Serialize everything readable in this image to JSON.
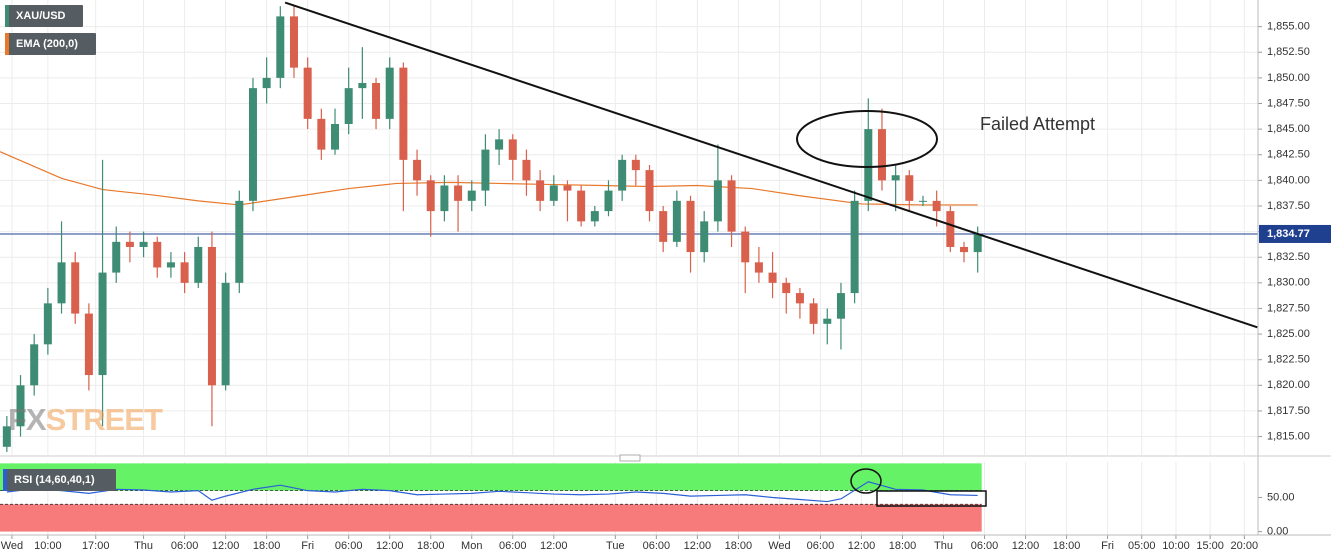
{
  "chart_data": [
    {
      "type": "candlestick",
      "title": "XAU/USD",
      "x": [
        1,
        3,
        5,
        7,
        9,
        11,
        13,
        15,
        17,
        19,
        21,
        23,
        25,
        27,
        29,
        31,
        33,
        35,
        37,
        39,
        41,
        43,
        45,
        47,
        49,
        51,
        53,
        55,
        57,
        59,
        61,
        63,
        65,
        67,
        69,
        71,
        73,
        75,
        77,
        79,
        81,
        83,
        85,
        87,
        89,
        91,
        93,
        95,
        97,
        99,
        101,
        103,
        105,
        107,
        109,
        111,
        113,
        115,
        117,
        119,
        121,
        123,
        125,
        127,
        129,
        131,
        133,
        135,
        137,
        139,
        141,
        143
      ],
      "open": [
        1814,
        1816,
        1820,
        1824,
        1828,
        1832,
        1827,
        1821,
        1831,
        1834,
        1833.5,
        1834,
        1831.5,
        1832,
        1830,
        1833.5,
        1820,
        1830,
        1838,
        1849,
        1850,
        1856,
        1851,
        1846,
        1843,
        1845.5,
        1849,
        1849.5,
        1846,
        1851,
        1842,
        1840,
        1837,
        1839.5,
        1838,
        1839,
        1843,
        1844,
        1842,
        1840,
        1838,
        1839.5,
        1839,
        1836,
        1837,
        1839,
        1842,
        1841,
        1837,
        1834,
        1838,
        1833,
        1836,
        1840,
        1835,
        1832,
        1831,
        1830,
        1829,
        1828,
        1826,
        1826.5,
        1829,
        1838,
        1845,
        1840,
        1840.5,
        1838,
        1838,
        1837,
        1833.5,
        1833
      ],
      "high": [
        1817,
        1821,
        1825,
        1829.5,
        1836,
        1833,
        1828,
        1842,
        1835.5,
        1835,
        1835,
        1834.5,
        1833,
        1833,
        1834.5,
        1835,
        1831,
        1839,
        1850,
        1852,
        1857,
        1857,
        1852,
        1847,
        1847,
        1851,
        1853,
        1850,
        1852,
        1851.5,
        1843,
        1840.5,
        1840.5,
        1840.5,
        1840,
        1844.5,
        1845,
        1844.5,
        1843,
        1841,
        1840.5,
        1840,
        1839.5,
        1837.5,
        1840,
        1842.5,
        1842.5,
        1841.5,
        1837.5,
        1839,
        1838.5,
        1837,
        1843.5,
        1840.5,
        1835.5,
        1833.5,
        1833,
        1830.5,
        1829.5,
        1828.5,
        1827.5,
        1830,
        1839,
        1848,
        1847,
        1841.5,
        1841,
        1838.5,
        1839,
        1837.5,
        1834,
        1835.5
      ],
      "low": [
        1813.5,
        1815,
        1819,
        1823,
        1827,
        1826,
        1819.5,
        1816,
        1830,
        1832,
        1832.5,
        1830.5,
        1830.5,
        1829,
        1829.5,
        1816,
        1819.5,
        1829,
        1837,
        1847.5,
        1849,
        1850,
        1845,
        1842,
        1842.5,
        1844.5,
        1846,
        1845,
        1845,
        1837,
        1838.5,
        1834.5,
        1836,
        1835,
        1837,
        1837.5,
        1841.5,
        1840,
        1838.5,
        1837,
        1837.5,
        1836,
        1835.5,
        1835.5,
        1836.5,
        1838,
        1839.5,
        1836,
        1833,
        1833.5,
        1831,
        1832,
        1835,
        1833.5,
        1829,
        1830,
        1828.5,
        1827,
        1826.5,
        1825,
        1824,
        1823.5,
        1828,
        1837,
        1839,
        1837,
        1837,
        1837.5,
        1835.5,
        1833,
        1832,
        1831
      ],
      "close": [
        1816,
        1820,
        1824,
        1828,
        1832,
        1827,
        1821,
        1831,
        1834,
        1833.5,
        1834,
        1831.5,
        1832,
        1830,
        1833.5,
        1820,
        1830,
        1838,
        1849,
        1850,
        1856,
        1851,
        1846,
        1843,
        1845.5,
        1849,
        1849.5,
        1846,
        1851,
        1842,
        1840,
        1837,
        1839.5,
        1838,
        1839,
        1843,
        1844,
        1842,
        1840,
        1838,
        1839.5,
        1839,
        1836,
        1837,
        1839,
        1842,
        1841,
        1837,
        1834,
        1838,
        1833,
        1836,
        1840,
        1835,
        1832,
        1831,
        1830,
        1829,
        1828,
        1826,
        1826.5,
        1829,
        1838,
        1845,
        1840,
        1840.5,
        1838,
        1838,
        1837,
        1833.5,
        1833,
        1834.77
      ],
      "colors": {
        "up": "#3e8c74",
        "down": "#d9604c"
      },
      "xlim": [
        0,
        184
      ],
      "xticks": [
        {
          "value": 1.75,
          "label": "Wed"
        },
        {
          "value": 7,
          "label": "10:00"
        },
        {
          "value": 14,
          "label": "17:00"
        },
        {
          "value": 21,
          "label": "Thu"
        },
        {
          "value": 27,
          "label": "06:00"
        },
        {
          "value": 33,
          "label": "12:00"
        },
        {
          "value": 39,
          "label": "18:00"
        },
        {
          "value": 45,
          "label": "Fri"
        },
        {
          "value": 51,
          "label": "06:00"
        },
        {
          "value": 57,
          "label": "12:00"
        },
        {
          "value": 63,
          "label": "18:00"
        },
        {
          "value": 69,
          "label": "Mon"
        },
        {
          "value": 75,
          "label": "06:00"
        },
        {
          "value": 81,
          "label": "12:00"
        },
        {
          "value": 90,
          "label": "Tue"
        },
        {
          "value": 96,
          "label": "06:00"
        },
        {
          "value": 102,
          "label": "12:00"
        },
        {
          "value": 108,
          "label": "18:00"
        },
        {
          "value": 114,
          "label": "Wed"
        },
        {
          "value": 120,
          "label": "06:00"
        },
        {
          "value": 126,
          "label": "12:00"
        },
        {
          "value": 132,
          "label": "18:00"
        },
        {
          "value": 138,
          "label": "Thu"
        },
        {
          "value": 144,
          "label": "06:00"
        },
        {
          "value": 150,
          "label": "12:00"
        },
        {
          "value": 156,
          "label": "18:00"
        },
        {
          "value": 162,
          "label": "Fri"
        },
        {
          "value": 167,
          "label": "05:00"
        },
        {
          "value": 172,
          "label": "10:00"
        },
        {
          "value": 177,
          "label": "15:00"
        },
        {
          "value": 182,
          "label": "20:00"
        }
      ],
      "ylim": [
        1813.2,
        1857.6
      ],
      "yticks": [
        {
          "value": 1815,
          "label": "1,815.00"
        },
        {
          "value": 1817.5,
          "label": "1,817.50"
        },
        {
          "value": 1820,
          "label": "1,820.00"
        },
        {
          "value": 1822.5,
          "label": "1,822.50"
        },
        {
          "value": 1825,
          "label": "1,825.00"
        },
        {
          "value": 1827.5,
          "label": "1,827.50"
        },
        {
          "value": 1830,
          "label": "1,830.00"
        },
        {
          "value": 1832.5,
          "label": "1,832.50"
        },
        {
          "value": 1835,
          "label": "1,835.00"
        },
        {
          "value": 1837.5,
          "label": "1,837.50"
        },
        {
          "value": 1840,
          "label": "1,840.00"
        },
        {
          "value": 1842.5,
          "label": "1,842.50"
        },
        {
          "value": 1845,
          "label": "1,845.00"
        },
        {
          "value": 1847.5,
          "label": "1,847.50"
        },
        {
          "value": 1850,
          "label": "1,850.00"
        },
        {
          "value": 1852.5,
          "label": "1,852.50"
        },
        {
          "value": 1855,
          "label": "1,855.00"
        }
      ],
      "grid": true,
      "ema": {
        "name": "EMA (200,0)",
        "color": "#e8782a",
        "x": [
          0,
          9,
          15,
          22,
          29,
          35,
          44,
          51,
          58,
          66,
          73,
          80,
          88,
          95,
          102,
          110,
          117,
          126,
          135,
          143
        ],
        "values": [
          1842.8,
          1840.2,
          1839.1,
          1838.6,
          1838,
          1837.6,
          1838.5,
          1839.2,
          1839.7,
          1839.8,
          1839.7,
          1839.6,
          1839.5,
          1839.4,
          1839.5,
          1839.2,
          1838.5,
          1837.7,
          1837.6,
          1837.6
        ]
      },
      "trendline": {
        "color": "#111111",
        "x": [
          41.7,
          183.9
        ],
        "y": [
          1857.35,
          1825.66
        ]
      },
      "last_price": {
        "value": 1834.77,
        "label": "1,834.77",
        "color": "#1f3f8f"
      },
      "annotation": "Failed Attempt",
      "watermark": [
        "FX",
        "STREET"
      ]
    },
    {
      "type": "line",
      "name": "RSI (14,60,40,1)",
      "color": "#2a5fd6",
      "x": [
        1,
        5,
        9,
        13,
        17,
        21,
        25,
        29,
        31,
        33,
        37,
        41,
        45,
        49,
        53,
        57,
        61,
        65,
        69,
        73,
        77,
        81,
        85,
        89,
        93,
        97,
        101,
        105,
        109,
        113,
        117,
        121,
        123,
        127,
        131,
        135,
        139,
        143
      ],
      "values": [
        58,
        63,
        60,
        56,
        62,
        61,
        58,
        60,
        46,
        52,
        62,
        68,
        60,
        58,
        62,
        60,
        54,
        55,
        56,
        59,
        57,
        55,
        54,
        55,
        58,
        56,
        52,
        53,
        54,
        50,
        47,
        44,
        48,
        73,
        62,
        61,
        54,
        53
      ],
      "ylim": [
        -5,
        102
      ],
      "yticks": [
        {
          "value": 0,
          "label": "0.00"
        },
        {
          "value": 50,
          "label": "50.00"
        }
      ],
      "overbought": 60,
      "oversold": 40,
      "zone_colors": {
        "overbought": "#66f266",
        "oversold": "#f77b7b"
      }
    }
  ]
}
